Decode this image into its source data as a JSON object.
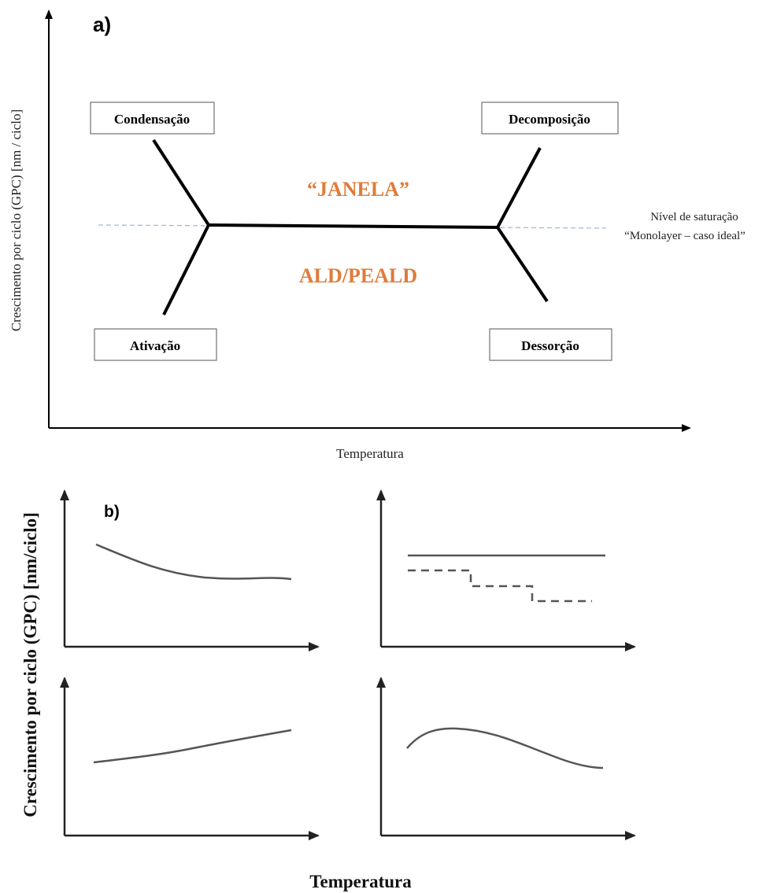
{
  "panel_a": {
    "letter": "a)",
    "y_axis_label": "Crescimento por ciclo (GPC) [nm / ciclo]",
    "x_axis_label": "Temperatura",
    "boxes": {
      "top_left": "Condensação",
      "top_right": "Decomposição",
      "bottom_left": "Ativação",
      "bottom_right": "Dessorção"
    },
    "window_line1": "“JANELA”",
    "window_line2": "ALD/PEALD",
    "saturation_line1": "Nível de saturação",
    "saturation_line2": "“Monolayer  – caso ideal”"
  },
  "panel_b": {
    "letter": "b)",
    "y_axis_label": "Crescimento por ciclo (GPC) [nm/ciclo]",
    "x_axis_label": "Temperatura"
  },
  "colors": {
    "accent_orange": "#e07b39",
    "saturation_dash": "#9dbbe0",
    "line": "#000000",
    "curve": "#555555"
  }
}
